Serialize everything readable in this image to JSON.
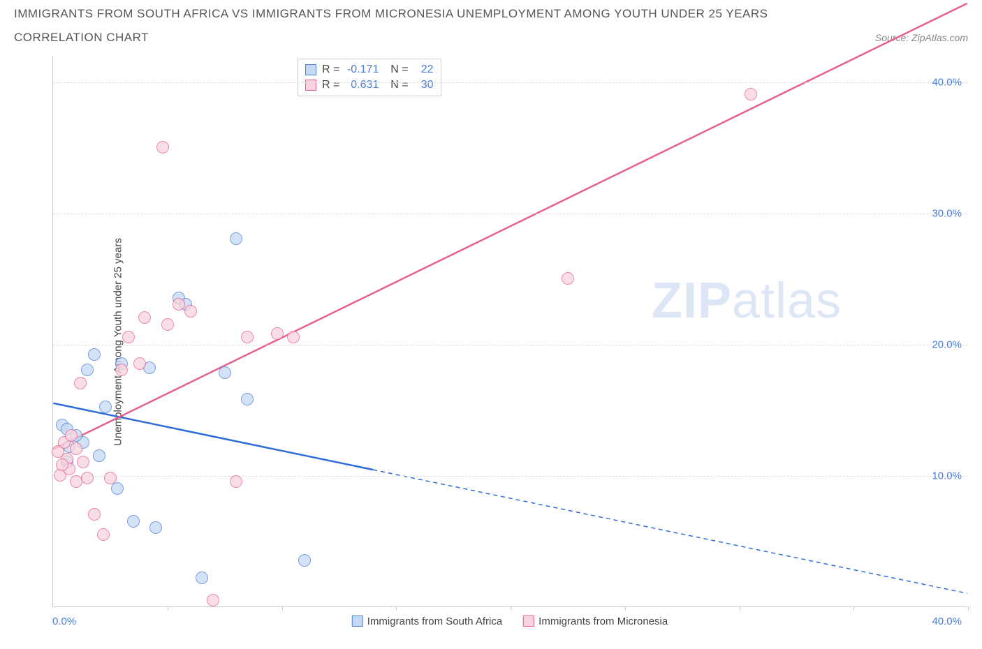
{
  "header": {
    "title": "IMMIGRANTS FROM SOUTH AFRICA VS IMMIGRANTS FROM MICRONESIA UNEMPLOYMENT AMONG YOUTH UNDER 25 YEARS",
    "subtitle": "CORRELATION CHART",
    "source": "Source: ZipAtlas.com"
  },
  "chart": {
    "type": "scatter",
    "y_axis_label": "Unemployment Among Youth under 25 years",
    "xlim": [
      0,
      40
    ],
    "ylim": [
      0,
      42
    ],
    "y_ticks": [
      10,
      20,
      30,
      40
    ],
    "y_tick_labels": [
      "10.0%",
      "20.0%",
      "30.0%",
      "40.0%"
    ],
    "x_tick_positions": [
      5,
      10,
      15,
      20,
      25,
      30,
      35,
      40
    ],
    "x_zero_label": "0.0%",
    "x_max_label": "40.0%",
    "background_color": "#ffffff",
    "grid_color": "#dddddd",
    "axis_color": "#cccccc",
    "tick_label_color": "#4a7fd8",
    "point_radius": 9,
    "series": [
      {
        "name": "Immigrants from South Africa",
        "fill_color": "#c5d9f4",
        "stroke_color": "#4a7fd8",
        "line_color": "#2d6cd6",
        "line_width": 2.5,
        "R": "-0.171",
        "N": "22",
        "points": [
          [
            0.4,
            13.8
          ],
          [
            0.6,
            13.5
          ],
          [
            0.6,
            11.0
          ],
          [
            0.7,
            12.2
          ],
          [
            1.3,
            12.5
          ],
          [
            1.5,
            18.0
          ],
          [
            1.8,
            19.2
          ],
          [
            2.0,
            11.5
          ],
          [
            2.3,
            15.2
          ],
          [
            2.8,
            9.0
          ],
          [
            3.0,
            18.5
          ],
          [
            3.5,
            6.5
          ],
          [
            4.2,
            18.2
          ],
          [
            4.5,
            6.0
          ],
          [
            5.5,
            23.5
          ],
          [
            5.8,
            23.0
          ],
          [
            6.5,
            2.2
          ],
          [
            7.5,
            17.8
          ],
          [
            8.0,
            28.0
          ],
          [
            8.5,
            15.8
          ],
          [
            11.0,
            3.5
          ],
          [
            1.0,
            13.0
          ]
        ],
        "trend": {
          "y_at_x0": 15.5,
          "y_at_xmax": 1.0,
          "solid_until_x": 14
        }
      },
      {
        "name": "Immigrants from Micronesia",
        "fill_color": "#f9d4de",
        "stroke_color": "#e85f8e",
        "line_color": "#e85f8e",
        "line_width": 2.5,
        "R": "0.631",
        "N": "30",
        "points": [
          [
            0.2,
            11.8
          ],
          [
            0.3,
            10.0
          ],
          [
            0.5,
            12.5
          ],
          [
            0.6,
            11.2
          ],
          [
            0.7,
            10.5
          ],
          [
            0.8,
            13.0
          ],
          [
            1.0,
            9.5
          ],
          [
            1.0,
            12.0
          ],
          [
            1.2,
            17.0
          ],
          [
            1.5,
            9.8
          ],
          [
            1.8,
            7.0
          ],
          [
            2.2,
            5.5
          ],
          [
            2.5,
            9.8
          ],
          [
            3.0,
            18.0
          ],
          [
            3.3,
            20.5
          ],
          [
            3.8,
            18.5
          ],
          [
            4.0,
            22.0
          ],
          [
            4.8,
            35.0
          ],
          [
            5.0,
            21.5
          ],
          [
            5.5,
            23.0
          ],
          [
            6.0,
            22.5
          ],
          [
            7.0,
            0.5
          ],
          [
            8.0,
            9.5
          ],
          [
            8.5,
            20.5
          ],
          [
            9.8,
            20.8
          ],
          [
            10.5,
            20.5
          ],
          [
            22.5,
            25.0
          ],
          [
            30.5,
            39.0
          ],
          [
            0.4,
            10.8
          ],
          [
            1.3,
            11.0
          ]
        ],
        "trend": {
          "y_at_x0": 12.0,
          "y_at_xmax": 46.0,
          "solid_until_x": 40
        }
      }
    ],
    "watermark": {
      "prefix": "ZIP",
      "suffix": "atlas"
    }
  },
  "legend": {
    "stats_labels": {
      "R": "R =",
      "N": "N ="
    }
  }
}
